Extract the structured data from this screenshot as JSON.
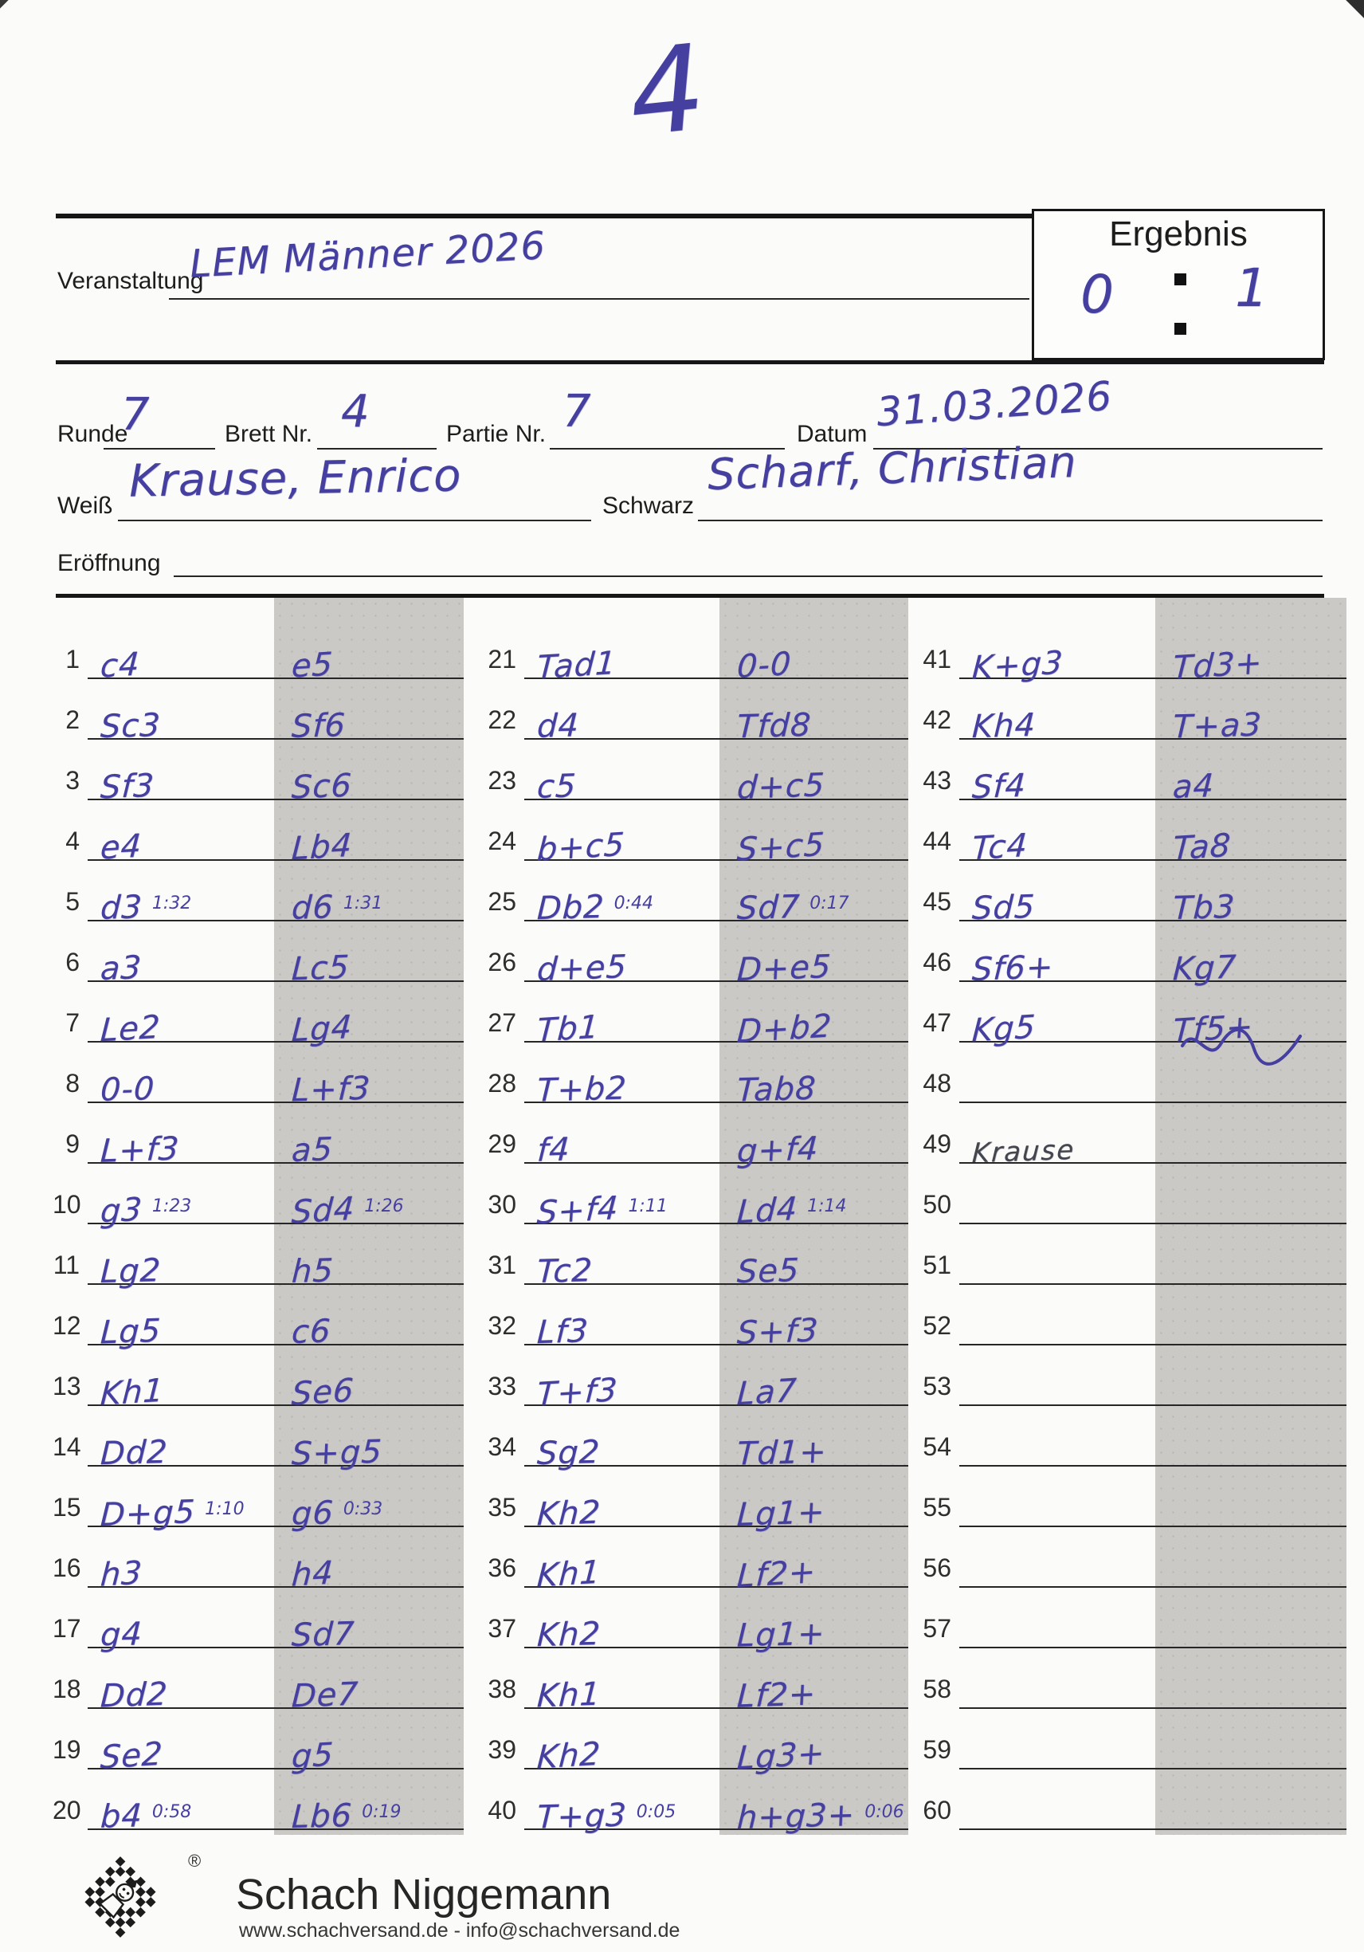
{
  "page_number": "4",
  "header": {
    "veranstaltung_label": "Veranstaltung",
    "veranstaltung_value": "LEM Männer 2026",
    "ergebnis_label": "Ergebnis",
    "ergebnis_white": "0",
    "ergebnis_black": "1",
    "runde_label": "Runde",
    "runde_value": "7",
    "brett_label": "Brett Nr.",
    "brett_value": "4",
    "partie_label": "Partie Nr.",
    "partie_value": "7",
    "datum_label": "Datum",
    "datum_value": "31.03.2026",
    "weiss_label": "Weiß",
    "weiss_value": "Krause, Enrico",
    "schwarz_label": "Schwarz",
    "schwarz_value": "Scharf, Christian",
    "eroeffnung_label": "Eröffnung",
    "eroeffnung_value": ""
  },
  "moves": [
    {
      "n": 1,
      "w": "c4",
      "b": "e5"
    },
    {
      "n": 2,
      "w": "Sc3",
      "b": "Sf6"
    },
    {
      "n": 3,
      "w": "Sf3",
      "b": "Sc6"
    },
    {
      "n": 4,
      "w": "e4",
      "b": "Lb4"
    },
    {
      "n": 5,
      "w": "d3",
      "wt": "1:32",
      "b": "d6",
      "bt": "1:31"
    },
    {
      "n": 6,
      "w": "a3",
      "b": "Lc5"
    },
    {
      "n": 7,
      "w": "Le2",
      "b": "Lg4"
    },
    {
      "n": 8,
      "w": "0-0",
      "b": "L+f3"
    },
    {
      "n": 9,
      "w": "L+f3",
      "b": "a5"
    },
    {
      "n": 10,
      "w": "g3",
      "wt": "1:23",
      "b": "Sd4",
      "bt": "1:26"
    },
    {
      "n": 11,
      "w": "Lg2",
      "b": "h5"
    },
    {
      "n": 12,
      "w": "Lg5",
      "b": "c6"
    },
    {
      "n": 13,
      "w": "Kh1",
      "b": "Se6"
    },
    {
      "n": 14,
      "w": "Dd2",
      "b": "S+g5"
    },
    {
      "n": 15,
      "w": "D+g5",
      "wt": "1:10",
      "b": "g6",
      "bt": "0:33"
    },
    {
      "n": 16,
      "w": "h3",
      "b": "h4"
    },
    {
      "n": 17,
      "w": "g4",
      "b": "Sd7"
    },
    {
      "n": 18,
      "w": "Dd2",
      "b": "De7"
    },
    {
      "n": 19,
      "w": "Se2",
      "b": "g5"
    },
    {
      "n": 20,
      "w": "b4",
      "wt": "0:58",
      "b": "Lb6",
      "bt": "0:19"
    },
    {
      "n": 21,
      "w": "Tad1",
      "b": "0-0"
    },
    {
      "n": 22,
      "w": "d4",
      "b": "Tfd8"
    },
    {
      "n": 23,
      "w": "c5",
      "b": "d+c5"
    },
    {
      "n": 24,
      "w": "b+c5",
      "b": "S+c5"
    },
    {
      "n": 25,
      "w": "Db2",
      "wt": "0:44",
      "b": "Sd7",
      "bt": "0:17"
    },
    {
      "n": 26,
      "w": "d+e5",
      "b": "D+e5"
    },
    {
      "n": 27,
      "w": "Tb1",
      "b": "D+b2"
    },
    {
      "n": 28,
      "w": "T+b2",
      "b": "Tab8"
    },
    {
      "n": 29,
      "w": "f4",
      "b": "g+f4"
    },
    {
      "n": 30,
      "w": "S+f4",
      "wt": "1:11",
      "b": "Ld4",
      "bt": "1:14"
    },
    {
      "n": 31,
      "w": "Tc2",
      "b": "Se5"
    },
    {
      "n": 32,
      "w": "Lf3",
      "b": "S+f3"
    },
    {
      "n": 33,
      "w": "T+f3",
      "b": "La7"
    },
    {
      "n": 34,
      "w": "Sg2",
      "b": "Td1+"
    },
    {
      "n": 35,
      "w": "Kh2",
      "b": "Lg1+"
    },
    {
      "n": 36,
      "w": "Kh1",
      "b": "Lf2+"
    },
    {
      "n": 37,
      "w": "Kh2",
      "b": "Lg1+"
    },
    {
      "n": 38,
      "w": "Kh1",
      "b": "Lf2+"
    },
    {
      "n": 39,
      "w": "Kh2",
      "b": "Lg3+"
    },
    {
      "n": 40,
      "w": "T+g3",
      "wt": "0:05",
      "b": "h+g3+",
      "bt": "0:06"
    },
    {
      "n": 41,
      "w": "K+g3",
      "b": "Td3+"
    },
    {
      "n": 42,
      "w": "Kh4",
      "b": "T+a3"
    },
    {
      "n": 43,
      "w": "Sf4",
      "b": "a4"
    },
    {
      "n": 44,
      "w": "Tc4",
      "b": "Ta8"
    },
    {
      "n": 45,
      "w": "Sd5",
      "b": "Tb3"
    },
    {
      "n": 46,
      "w": "Sf6+",
      "b": "Kg7"
    },
    {
      "n": 47,
      "w": "Kg5",
      "b": "Tf5+",
      "bscrib": true
    },
    {
      "n": 48,
      "w": "",
      "b": ""
    },
    {
      "n": 49,
      "w": "Krause",
      "wsig": true,
      "b": ""
    },
    {
      "n": 50,
      "w": "",
      "b": ""
    },
    {
      "n": 51,
      "w": "",
      "b": ""
    },
    {
      "n": 52,
      "w": "",
      "b": ""
    },
    {
      "n": 53,
      "w": "",
      "b": ""
    },
    {
      "n": 54,
      "w": "",
      "b": ""
    },
    {
      "n": 55,
      "w": "",
      "b": ""
    },
    {
      "n": 56,
      "w": "",
      "b": ""
    },
    {
      "n": 57,
      "w": "",
      "b": ""
    },
    {
      "n": 58,
      "w": "",
      "b": ""
    },
    {
      "n": 59,
      "w": "",
      "b": ""
    },
    {
      "n": 60,
      "w": "",
      "b": ""
    }
  ],
  "annotations": {
    "row47_black_note": "signature scribble below move",
    "row49_white_note": "white player's signature in dark ink"
  },
  "footer": {
    "brand": "Schach Niggemann",
    "contact": "www.schachversand.de  -  info@schachversand.de",
    "registered": "®",
    "logo": "chess-king-checkerboard-logo"
  },
  "colors": {
    "ink": "#453fa0",
    "band": "#cbc9c6",
    "line": "#262626"
  }
}
